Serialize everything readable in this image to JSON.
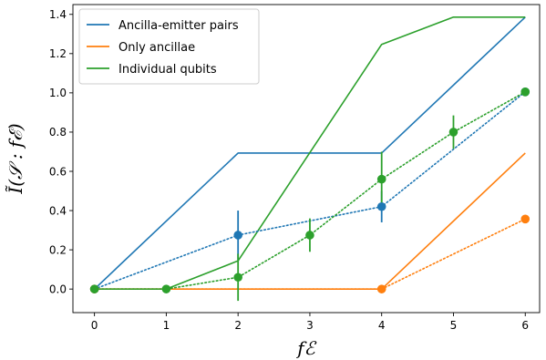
{
  "chart_data": {
    "type": "line",
    "xlabel": "fℰ",
    "ylabel": "Ĩ(𝒮 : fℰ)",
    "xlim": [
      -0.3,
      6.2
    ],
    "ylim": [
      -0.12,
      1.45
    ],
    "xticks": [
      "0",
      "1",
      "2",
      "3",
      "4",
      "5",
      "6"
    ],
    "yticks": [
      "0.0",
      "0.2",
      "0.4",
      "0.6",
      "0.8",
      "1.0",
      "1.2",
      "1.4"
    ],
    "grid": false,
    "legend_position": "top-left",
    "series": [
      {
        "name": "Ancilla-emitter pairs",
        "color": "#1f77b4",
        "x": [
          0,
          2,
          4,
          6
        ],
        "y": [
          0,
          0.693,
          0.693,
          1.386
        ]
      },
      {
        "name": "Only ancillae",
        "color": "#ff7f0e",
        "x": [
          0,
          4,
          6
        ],
        "y": [
          0,
          0,
          0.693
        ]
      },
      {
        "name": "Individual qubits",
        "color": "#2ca02c",
        "x": [
          0,
          1,
          2,
          4,
          5,
          6
        ],
        "y": [
          0,
          0,
          0.144,
          1.247,
          1.386,
          1.386
        ]
      }
    ],
    "measured": [
      {
        "color": "#1f77b4",
        "x": [
          0,
          2,
          4,
          6
        ],
        "y": [
          0,
          0.275,
          0.42,
          1.005
        ],
        "err": [
          0,
          0.125,
          0.08,
          0
        ]
      },
      {
        "color": "#ff7f0e",
        "x": [
          0,
          4,
          6
        ],
        "y": [
          0,
          0,
          0.357
        ],
        "err": [
          0,
          0,
          0
        ]
      },
      {
        "color": "#2ca02c",
        "x": [
          0,
          1,
          2,
          3,
          4,
          5,
          6
        ],
        "y": [
          0,
          0,
          0.06,
          0.275,
          0.56,
          0.8,
          1.005
        ],
        "err": [
          0,
          0,
          0.12,
          0.085,
          0.14,
          0.085,
          0
        ]
      }
    ]
  }
}
